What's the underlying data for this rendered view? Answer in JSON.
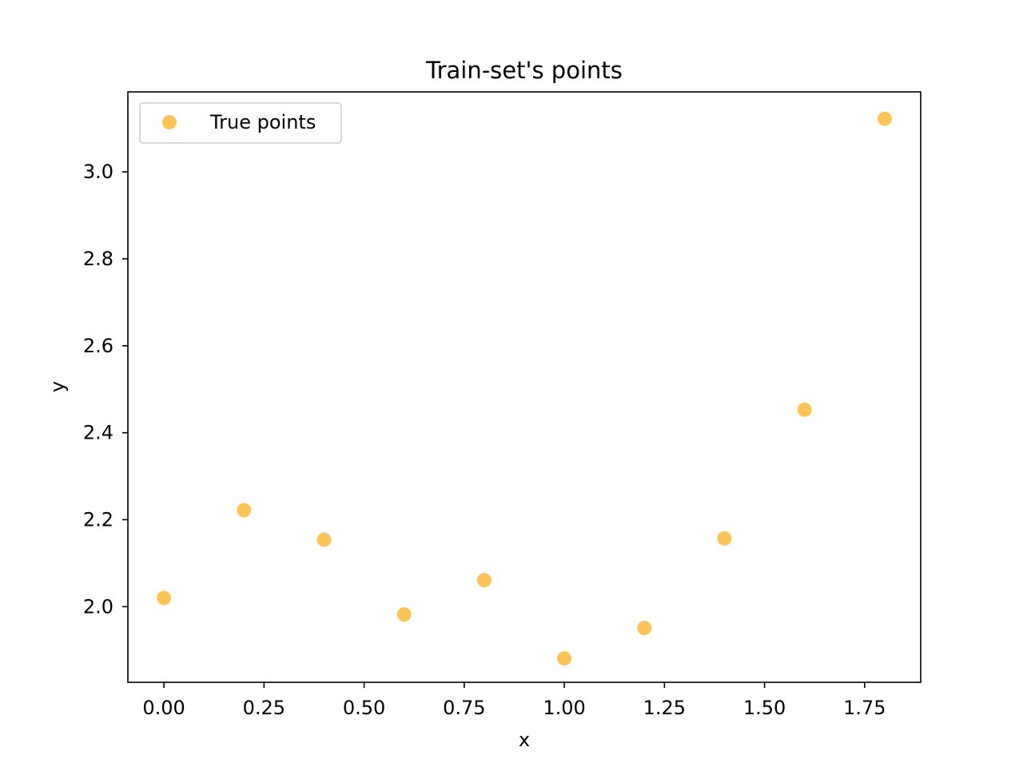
{
  "chart_data": {
    "type": "scatter",
    "title": "Train-set's points",
    "xlabel": "x",
    "ylabel": "y",
    "xlim": [
      -0.09,
      1.89
    ],
    "ylim": [
      1.826,
      3.184
    ],
    "x_ticks": [
      0.0,
      0.25,
      0.5,
      0.75,
      1.0,
      1.25,
      1.5,
      1.75
    ],
    "x_tick_labels": [
      "0.00",
      "0.25",
      "0.50",
      "0.75",
      "1.00",
      "1.25",
      "1.50",
      "1.75"
    ],
    "y_ticks": [
      2.0,
      2.2,
      2.4,
      2.6,
      2.8,
      3.0
    ],
    "y_tick_labels": [
      "2.0",
      "2.2",
      "2.4",
      "2.6",
      "2.8",
      "3.0"
    ],
    "grid": false,
    "legend_position": "upper-left",
    "series": [
      {
        "name": "True points",
        "color": "#fdc45a",
        "x": [
          0.0,
          0.2,
          0.4,
          0.6,
          0.8,
          1.0,
          1.2,
          1.4,
          1.6,
          1.8
        ],
        "y": [
          2.02,
          2.222,
          2.154,
          1.982,
          2.061,
          1.881,
          1.951,
          2.157,
          2.453,
          3.122
        ]
      }
    ]
  }
}
